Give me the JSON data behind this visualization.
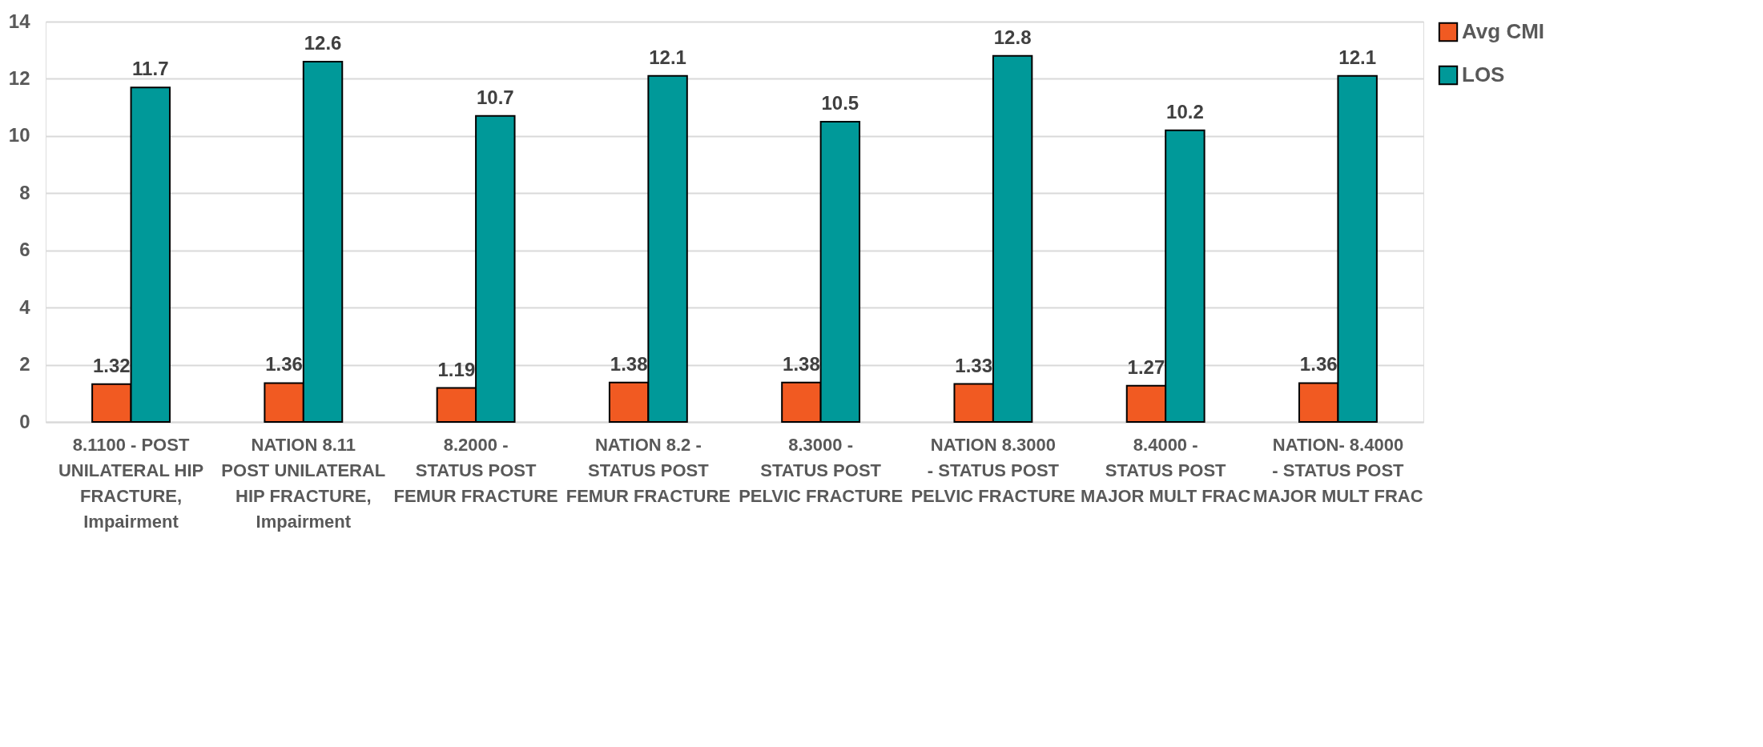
{
  "chart_data": {
    "type": "bar",
    "categories": [
      "8.1100  - POST UNILATERAL HIP FRACTURE, Impairment",
      "NATION 8.11 POST UNILATERAL HIP FRACTURE, Impairment",
      "8.2000  - STATUS POST FEMUR FRACTURE",
      "NATION 8.2  - STATUS POST FEMUR FRACTURE",
      "8.3000  - STATUS POST PELVIC FRACTURE",
      "NATION  8.3000  - STATUS POST PELVIC FRACTURE",
      "8.4000  - STATUS POST MAJOR MULT FRAC",
      "NATION-  8.4000  - STATUS POST MAJOR MULT FRAC"
    ],
    "series": [
      {
        "name": "Avg CMI",
        "color": "#f15a22",
        "values": [
          1.32,
          1.36,
          1.19,
          1.38,
          1.38,
          1.33,
          1.27,
          1.36
        ]
      },
      {
        "name": "LOS",
        "color": "#009999",
        "values": [
          11.7,
          12.6,
          10.7,
          12.1,
          10.5,
          12.8,
          10.2,
          12.1
        ]
      }
    ],
    "ylim": [
      0,
      14
    ],
    "yticks": [
      0,
      2,
      4,
      6,
      8,
      10,
      12,
      14
    ],
    "grid": "y",
    "legend": "right",
    "data_labels": true
  }
}
